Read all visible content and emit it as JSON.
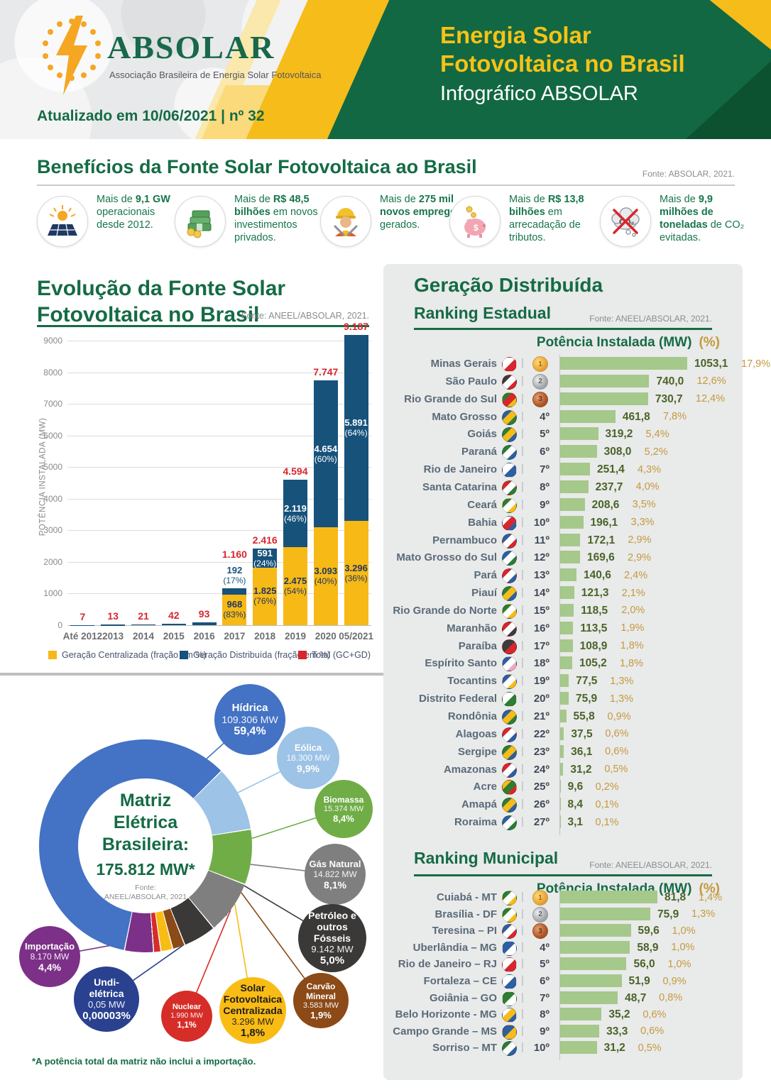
{
  "header": {
    "logo_title": "ABSOLAR",
    "logo_subtitle": "Associação Brasileira de Energia Solar Fotovoltaica",
    "updated": "Atualizado em 10/06/2021 | nº 32",
    "title_line1": "Energia Solar",
    "title_line2": "Fotovoltaica no Brasil",
    "subtitle": "Infográfico ABSOLAR"
  },
  "benefits": {
    "title": "Benefícios da Fonte Solar Fotovoltaica ao Brasil",
    "source": "Fonte: ABSOLAR, 2021.",
    "items": [
      {
        "icon": "solar-panel-icon",
        "pre": "Mais de ",
        "bold": "9,1 GW",
        "post": " operacionais desde 2012."
      },
      {
        "icon": "money-icon",
        "pre": "Mais de ",
        "bold": "R$ 48,5 bilhões",
        "post": " em novos investimentos privados."
      },
      {
        "icon": "worker-icon",
        "pre": "Mais de ",
        "bold": "275 mil novos empregos",
        "post": " gerados."
      },
      {
        "icon": "piggy-bank-icon",
        "pre": "Mais de ",
        "bold": "R$ 13,8 bilhões",
        "post": " em arrecadação de tributos."
      },
      {
        "icon": "co2-icon",
        "pre": "Mais de ",
        "bold": "9,9 milhões de toneladas",
        "post": " de CO₂ evitadas."
      }
    ]
  },
  "chart_data": [
    {
      "type": "bar",
      "id": "evolution",
      "title_line1": "Evolução da Fonte Solar",
      "title_line2": "Fotovoltaica no Brasil",
      "source": "Fonte: ANEEL/ABSOLAR, 2021.",
      "ylabel": "POTÊNCIA INSTALADA (MW)",
      "ylim": [
        0,
        9000
      ],
      "ytick_step": 1000,
      "grid": true,
      "legend_position": "bottom",
      "legend": [
        {
          "label": "Geração Centralizada (fração em %)",
          "color": "#f7b916"
        },
        {
          "label": "Geração Distribuída (fração em %)",
          "color": "#17527b"
        },
        {
          "label": "Total (GC+GD)",
          "color": "#d8262c"
        }
      ],
      "categories": [
        "Até 2012",
        "2013",
        "2014",
        "2015",
        "2016",
        "2017",
        "2018",
        "2019",
        "2020",
        "05/2021"
      ],
      "rows": [
        {
          "cat": "Até 2012",
          "total": 7,
          "total_label": "7"
        },
        {
          "cat": "2013",
          "total": 13,
          "total_label": "13"
        },
        {
          "cat": "2014",
          "total": 21,
          "total_label": "21"
        },
        {
          "cat": "2015",
          "total": 42,
          "total_label": "42"
        },
        {
          "cat": "2016",
          "total": 93,
          "total_label": "93"
        },
        {
          "cat": "2017",
          "total": 1160,
          "total_label": "1.160",
          "gc": 968,
          "gc_label": "968",
          "gc_pct": "(83%)",
          "gd": 192,
          "gd_label": "192",
          "gd_pct": "(17%)"
        },
        {
          "cat": "2018",
          "total": 2416,
          "total_label": "2.416",
          "gc": 1825,
          "gc_label": "1.825",
          "gc_pct": "(76%)",
          "gd": 591,
          "gd_label": "591",
          "gd_pct": "(24%)"
        },
        {
          "cat": "2019",
          "total": 4594,
          "total_label": "4.594",
          "gc": 2475,
          "gc_label": "2.475",
          "gc_pct": "(54%)",
          "gd": 2119,
          "gd_label": "2.119",
          "gd_pct": "(46%)"
        },
        {
          "cat": "2020",
          "total": 7747,
          "total_label": "7.747",
          "gc": 3093,
          "gc_label": "3.093",
          "gc_pct": "(40%)",
          "gd": 4654,
          "gd_label": "4.654",
          "gd_pct": "(60%)"
        },
        {
          "cat": "05/2021",
          "total": 9187,
          "total_label": "9.187",
          "gc": 3296,
          "gc_label": "3.296",
          "gc_pct": "(36%)",
          "gd": 5891,
          "gd_label": "5.891",
          "gd_pct": "(64%)"
        }
      ]
    },
    {
      "type": "pie",
      "id": "matriz",
      "center_line1": "Matriz",
      "center_line2": "Elétrica",
      "center_line3": "Brasileira:",
      "center_total": "175.812 MW*",
      "center_source1": "Fonte:",
      "center_source2": "ANEEL/ABSOLAR, 2021",
      "footnote": "*A potência total da matriz não inclui a importação.",
      "slices": [
        {
          "name": "Eólica",
          "mw": "18.300 MW",
          "pct_label": "9,9%",
          "pct": 9.9,
          "color": "#9dc3e6",
          "text": "#ffffff"
        },
        {
          "name": "Biomassa",
          "mw": "15.374 MW",
          "pct_label": "8,4%",
          "pct": 8.4,
          "color": "#70ad47",
          "text": "#ffffff"
        },
        {
          "name": "Gás Natural",
          "mw": "14.822 MW",
          "pct_label": "8,1%",
          "pct": 8.1,
          "color": "#7f7f7f",
          "text": "#ffffff"
        },
        {
          "name": "Petróleo e outros Fósseis",
          "mw": "9.142 MW",
          "pct_label": "5,0%",
          "pct": 5.0,
          "color": "#3b3838",
          "text": "#ffffff"
        },
        {
          "name": "Carvão Mineral",
          "mw": "3.583 MW",
          "pct_label": "1,9%",
          "pct": 1.9,
          "color": "#8c4a17",
          "text": "#ffffff"
        },
        {
          "name": "Solar Fotovoltaica Centralizada",
          "mw": "3.296 MW",
          "pct_label": "1,8%",
          "pct": 1.8,
          "color": "#f9bc15",
          "text": "#1c1c1c"
        },
        {
          "name": "Nuclear",
          "mw": "1.990 MW",
          "pct_label": "1,1%",
          "pct": 1.1,
          "color": "#d62d28",
          "text": "#ffffff"
        },
        {
          "name": "Undi-elétrica",
          "mw": "0,05 MW",
          "pct_label": "0,00003%",
          "pct": 3e-05,
          "color": "#29418f",
          "text": "#ffffff"
        },
        {
          "name": "Importação",
          "mw": "8.170 MW",
          "pct_label": "4,4%",
          "pct": 4.4,
          "color": "#7c3087",
          "text": "#ffffff"
        },
        {
          "name": "Hídrica",
          "mw": "109.306 MW",
          "pct_label": "59,4%",
          "pct": 59.4,
          "color": "#4472c4",
          "text": "#ffffff"
        }
      ]
    },
    {
      "type": "bar",
      "id": "ranking_estadual",
      "section_title": "Geração Distribuída",
      "title": "Ranking Estadual",
      "source": "Fonte: ANEEL/ABSOLAR, 2021.",
      "col_header_mw": "Potência Instalada (MW)",
      "col_header_pct": "(%)",
      "rows": [
        {
          "name": "Minas Gerais",
          "rank": "1º",
          "medal": "gold",
          "value": 1053.1,
          "value_label": "1053,1",
          "pct_label": "17,9%",
          "flag": [
            "#ffffff",
            "#d8262c"
          ]
        },
        {
          "name": "São Paulo",
          "rank": "2º",
          "medal": "silver",
          "value": 740.0,
          "value_label": "740,0",
          "pct_label": "12,6%",
          "flag": [
            "#3c3c3c",
            "#ffffff",
            "#d8262c"
          ]
        },
        {
          "name": "Rio Grande do Sul",
          "rank": "3º",
          "medal": "bronze",
          "value": 730.7,
          "value_label": "730,7",
          "pct_label": "12,4%",
          "flag": [
            "#2e7d32",
            "#d8262c",
            "#f6bc1a"
          ]
        },
        {
          "name": "Mato Grosso",
          "rank": "4º",
          "medal": null,
          "value": 461.8,
          "value_label": "461,8",
          "pct_label": "7,8%",
          "flag": [
            "#2e5fa3",
            "#f6bc1a",
            "#2e7d32"
          ]
        },
        {
          "name": "Goiás",
          "rank": "5º",
          "medal": null,
          "value": 319.2,
          "value_label": "319,2",
          "pct_label": "5,4%",
          "flag": [
            "#2e7d32",
            "#f6bc1a",
            "#2e5fa3"
          ]
        },
        {
          "name": "Paraná",
          "rank": "6º",
          "medal": null,
          "value": 308.0,
          "value_label": "308,0",
          "pct_label": "5,2%",
          "flag": [
            "#2e7d32",
            "#ffffff",
            "#2e5fa3"
          ]
        },
        {
          "name": "Rio de Janeiro",
          "rank": "7º",
          "medal": null,
          "value": 251.4,
          "value_label": "251,4",
          "pct_label": "4,3%",
          "flag": [
            "#ffffff",
            "#2e5fa3"
          ]
        },
        {
          "name": "Santa Catarina",
          "rank": "8º",
          "medal": null,
          "value": 237.7,
          "value_label": "237,7",
          "pct_label": "4,0%",
          "flag": [
            "#d8262c",
            "#ffffff",
            "#2e7d32"
          ]
        },
        {
          "name": "Ceará",
          "rank": "9º",
          "medal": null,
          "value": 208.6,
          "value_label": "208,6",
          "pct_label": "3,5%",
          "flag": [
            "#2e7d32",
            "#ffffff",
            "#f6bc1a"
          ]
        },
        {
          "name": "Bahia",
          "rank": "10º",
          "medal": null,
          "value": 196.1,
          "value_label": "196,1",
          "pct_label": "3,3%",
          "flag": [
            "#ffffff",
            "#d8262c",
            "#2e5fa3"
          ]
        },
        {
          "name": "Pernambuco",
          "rank": "11º",
          "medal": null,
          "value": 172.1,
          "value_label": "172,1",
          "pct_label": "2,9%",
          "flag": [
            "#2e5fa3",
            "#ffffff",
            "#d8262c"
          ]
        },
        {
          "name": "Mato Grosso do Sul",
          "rank": "12º",
          "medal": null,
          "value": 169.6,
          "value_label": "169,6",
          "pct_label": "2,9%",
          "flag": [
            "#2e5fa3",
            "#ffffff",
            "#2e7d32"
          ]
        },
        {
          "name": "Pará",
          "rank": "13º",
          "medal": null,
          "value": 140.6,
          "value_label": "140,6",
          "pct_label": "2,4%",
          "flag": [
            "#d8262c",
            "#ffffff",
            "#2e5fa3"
          ]
        },
        {
          "name": "Piauí",
          "rank": "14º",
          "medal": null,
          "value": 121.3,
          "value_label": "121,3",
          "pct_label": "2,1%",
          "flag": [
            "#2e7d32",
            "#f6bc1a",
            "#2e5fa3"
          ]
        },
        {
          "name": "Rio Grande do Norte",
          "rank": "15º",
          "medal": null,
          "value": 118.5,
          "value_label": "118,5",
          "pct_label": "2,0%",
          "flag": [
            "#2e7d32",
            "#ffffff",
            "#f6bc1a"
          ]
        },
        {
          "name": "Maranhão",
          "rank": "16º",
          "medal": null,
          "value": 113.5,
          "value_label": "113,5",
          "pct_label": "1,9%",
          "flag": [
            "#d8262c",
            "#ffffff",
            "#3c3c3c"
          ]
        },
        {
          "name": "Paraíba",
          "rank": "17º",
          "medal": null,
          "value": 108.9,
          "value_label": "108,9",
          "pct_label": "1,8%",
          "flag": [
            "#3c3c3c",
            "#d8262c"
          ]
        },
        {
          "name": "Espírito Santo",
          "rank": "18º",
          "medal": null,
          "value": 105.2,
          "value_label": "105,2",
          "pct_label": "1,8%",
          "flag": [
            "#2e5fa3",
            "#ffffff",
            "#f4a7c0"
          ]
        },
        {
          "name": "Tocantins",
          "rank": "19º",
          "medal": null,
          "value": 77.5,
          "value_label": "77,5",
          "pct_label": "1,3%",
          "flag": [
            "#2e5fa3",
            "#ffffff",
            "#f6bc1a"
          ]
        },
        {
          "name": "Distrito Federal",
          "rank": "20º",
          "medal": null,
          "value": 75.9,
          "value_label": "75,9",
          "pct_label": "1,3%",
          "flag": [
            "#ffffff",
            "#2e7d32"
          ]
        },
        {
          "name": "Rondônia",
          "rank": "21º",
          "medal": null,
          "value": 55.8,
          "value_label": "55,8",
          "pct_label": "0,9%",
          "flag": [
            "#2e5fa3",
            "#f6bc1a",
            "#2e7d32"
          ]
        },
        {
          "name": "Alagoas",
          "rank": "22º",
          "medal": null,
          "value": 37.5,
          "value_label": "37,5",
          "pct_label": "0,6%",
          "flag": [
            "#d8262c",
            "#ffffff",
            "#2e5fa3"
          ]
        },
        {
          "name": "Sergipe",
          "rank": "23º",
          "medal": null,
          "value": 36.1,
          "value_label": "36,1",
          "pct_label": "0,6%",
          "flag": [
            "#2e7d32",
            "#f6bc1a",
            "#2e5fa3"
          ]
        },
        {
          "name": "Amazonas",
          "rank": "24º",
          "medal": null,
          "value": 31.2,
          "value_label": "31,2",
          "pct_label": "0,5%",
          "flag": [
            "#d8262c",
            "#ffffff",
            "#2e5fa3"
          ]
        },
        {
          "name": "Acre",
          "rank": "25º",
          "medal": null,
          "value": 9.6,
          "value_label": "9,6",
          "pct_label": "0,2%",
          "flag": [
            "#f6bc1a",
            "#2e7d32",
            "#d8262c"
          ]
        },
        {
          "name": "Amapá",
          "rank": "26º",
          "medal": null,
          "value": 8.4,
          "value_label": "8,4",
          "pct_label": "0,1%",
          "flag": [
            "#2e7d32",
            "#f6bc1a",
            "#2e5fa3"
          ]
        },
        {
          "name": "Roraima",
          "rank": "27º",
          "medal": null,
          "value": 3.1,
          "value_label": "3,1",
          "pct_label": "0,1%",
          "flag": [
            "#2e5fa3",
            "#ffffff",
            "#2e7d32"
          ]
        }
      ]
    },
    {
      "type": "bar",
      "id": "ranking_municipal",
      "title": "Ranking Municipal",
      "source": "Fonte: ANEEL/ABSOLAR, 2021.",
      "col_header_mw": "Potência Instalada (MW)",
      "col_header_pct": "(%)",
      "rows": [
        {
          "name": "Cuiabá - MT",
          "rank": "1º",
          "medal": "gold",
          "value": 81.8,
          "value_label": "81,8",
          "pct_label": "1,4%",
          "flag": [
            "#2e7d32",
            "#ffffff",
            "#f6bc1a"
          ]
        },
        {
          "name": "Brasília - DF",
          "rank": "2º",
          "medal": "silver",
          "value": 75.9,
          "value_label": "75,9",
          "pct_label": "1,3%",
          "flag": [
            "#2e7d32",
            "#ffffff",
            "#f6bc1a"
          ]
        },
        {
          "name": "Teresina – PI",
          "rank": "3º",
          "medal": "bronze",
          "value": 59.6,
          "value_label": "59,6",
          "pct_label": "1,0%",
          "flag": [
            "#2e5fa3",
            "#ffffff",
            "#d8262c"
          ]
        },
        {
          "name": "Uberlândia – MG",
          "rank": "4º",
          "medal": null,
          "value": 58.9,
          "value_label": "58,9",
          "pct_label": "1,0%",
          "flag": [
            "#2e5fa3",
            "#ffffff"
          ]
        },
        {
          "name": "Rio de Janeiro – RJ",
          "rank": "5º",
          "medal": null,
          "value": 56.0,
          "value_label": "56,0",
          "pct_label": "1,0%",
          "flag": [
            "#ffffff",
            "#d8262c"
          ]
        },
        {
          "name": "Fortaleza – CE",
          "rank": "6º",
          "medal": null,
          "value": 51.9,
          "value_label": "51,9",
          "pct_label": "0,9%",
          "flag": [
            "#ffffff",
            "#2e5fa3"
          ]
        },
        {
          "name": "Goiânia – GO",
          "rank": "7º",
          "medal": null,
          "value": 48.7,
          "value_label": "48,7",
          "pct_label": "0,8%",
          "flag": [
            "#2e7d32",
            "#ffffff"
          ]
        },
        {
          "name": "Belo Horizonte - MG",
          "rank": "8º",
          "medal": null,
          "value": 35.2,
          "value_label": "35,2",
          "pct_label": "0,6%",
          "flag": [
            "#ffffff",
            "#f6bc1a",
            "#2e5fa3"
          ]
        },
        {
          "name": "Campo Grande – MS",
          "rank": "9º",
          "medal": null,
          "value": 33.3,
          "value_label": "33,3",
          "pct_label": "0,6%",
          "flag": [
            "#2e5fa3",
            "#f6bc1a"
          ]
        },
        {
          "name": "Sorriso – MT",
          "rank": "10º",
          "medal": null,
          "value": 31.2,
          "value_label": "31,2",
          "pct_label": "0,5%",
          "flag": [
            "#2e7d32",
            "#ffffff",
            "#2e5fa3"
          ]
        }
      ]
    }
  ],
  "colors": {
    "green": "#156b45",
    "header_green": "#126842",
    "yellow": "#f6bc1a",
    "bar_yellow": "#f7b916",
    "bar_blue": "#17527b",
    "total_red": "#d8262c",
    "ranking_bar": "#a5c88b",
    "value_green": "#4a6428",
    "pct_gold": "#c49a3e"
  }
}
